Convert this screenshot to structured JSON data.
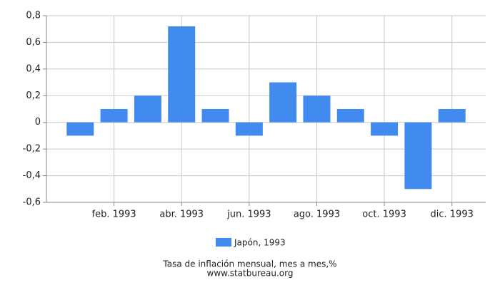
{
  "chart_data": {
    "type": "bar",
    "categories": [
      null,
      "feb. 1993",
      null,
      "abr. 1993",
      null,
      "jun. 1993",
      null,
      "ago. 1993",
      null,
      "oct. 1993",
      null,
      "dic. 1993"
    ],
    "series": [
      {
        "name": "Japón, 1993",
        "color": "#428bee",
        "values": [
          -0.1,
          0.1,
          0.2,
          0.72,
          0.1,
          -0.1,
          0.3,
          0.2,
          0.1,
          -0.1,
          -0.5,
          0.1
        ]
      }
    ],
    "ylim": [
      -0.6,
      0.8
    ],
    "yticks": [
      {
        "value": -0.6,
        "label": "-0,6"
      },
      {
        "value": -0.4,
        "label": "-0,4"
      },
      {
        "value": -0.2,
        "label": "-0,2"
      },
      0,
      {
        "value": 0.2,
        "label": "0,2"
      },
      {
        "value": 0.4,
        "label": "0,4"
      },
      {
        "value": 0.6,
        "label": "0,6"
      },
      {
        "value": 0.8,
        "label": "0,8"
      }
    ],
    "grid": true,
    "legend": "bottom",
    "caption": "Tasa de inflación mensual, mes a mes,%",
    "source": "www.statbureau.org"
  }
}
